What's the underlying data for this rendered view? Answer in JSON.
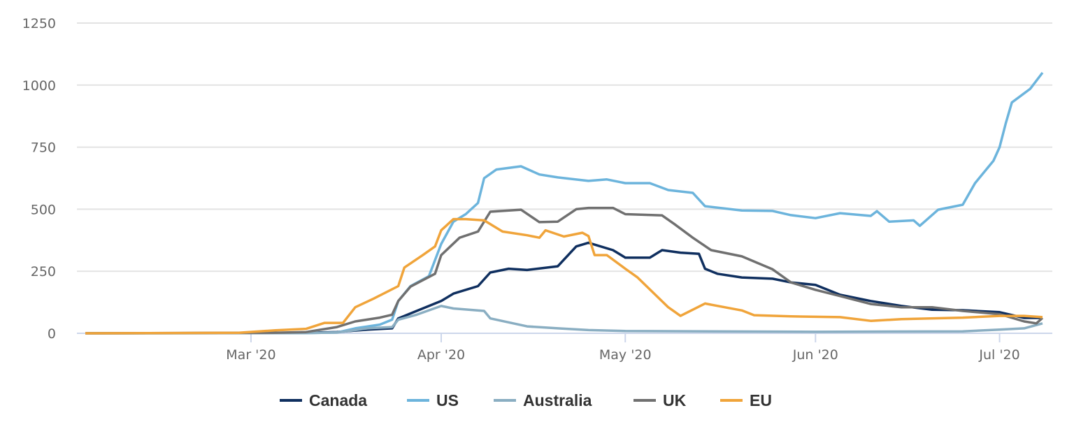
{
  "chart_data": {
    "type": "line",
    "title": "",
    "xlabel": "",
    "ylabel": "",
    "xlim": [
      "2020-02-03",
      "2020-07-08"
    ],
    "ylim": [
      0,
      1250
    ],
    "grid": true,
    "legend_position": "bottom-center",
    "y_ticks": [
      "0",
      "250",
      "500",
      "750",
      "1000",
      "1250"
    ],
    "x_ticks": [
      {
        "date": "2020-03-01",
        "label": "Mar '20"
      },
      {
        "date": "2020-04-01",
        "label": "Apr '20"
      },
      {
        "date": "2020-05-01",
        "label": "May '20"
      },
      {
        "date": "2020-06-01",
        "label": "Jun '20"
      },
      {
        "date": "2020-07-01",
        "label": "Jul '20"
      }
    ],
    "series": [
      {
        "name": "Canada",
        "color": "#0f2f5f",
        "points": [
          [
            "2020-02-03",
            0
          ],
          [
            "2020-03-10",
            2
          ],
          [
            "2020-03-15",
            5
          ],
          [
            "2020-03-20",
            15
          ],
          [
            "2020-03-24",
            20
          ],
          [
            "2020-03-25",
            60
          ],
          [
            "2020-03-28",
            90
          ],
          [
            "2020-04-01",
            130
          ],
          [
            "2020-04-03",
            160
          ],
          [
            "2020-04-07",
            190
          ],
          [
            "2020-04-09",
            245
          ],
          [
            "2020-04-12",
            260
          ],
          [
            "2020-04-15",
            255
          ],
          [
            "2020-04-20",
            270
          ],
          [
            "2020-04-23",
            350
          ],
          [
            "2020-04-25",
            365
          ],
          [
            "2020-04-29",
            335
          ],
          [
            "2020-05-01",
            305
          ],
          [
            "2020-05-05",
            305
          ],
          [
            "2020-05-07",
            335
          ],
          [
            "2020-05-10",
            325
          ],
          [
            "2020-05-13",
            320
          ],
          [
            "2020-05-14",
            260
          ],
          [
            "2020-05-16",
            240
          ],
          [
            "2020-05-20",
            225
          ],
          [
            "2020-05-25",
            220
          ],
          [
            "2020-05-28",
            205
          ],
          [
            "2020-06-01",
            195
          ],
          [
            "2020-06-05",
            155
          ],
          [
            "2020-06-10",
            130
          ],
          [
            "2020-06-15",
            110
          ],
          [
            "2020-06-20",
            95
          ],
          [
            "2020-06-25",
            93
          ],
          [
            "2020-07-01",
            85
          ],
          [
            "2020-07-05",
            62
          ],
          [
            "2020-07-08",
            62
          ]
        ]
      },
      {
        "name": "US",
        "color": "#6cb4dc",
        "points": [
          [
            "2020-02-03",
            0
          ],
          [
            "2020-03-10",
            1
          ],
          [
            "2020-03-15",
            3
          ],
          [
            "2020-03-18",
            20
          ],
          [
            "2020-03-22",
            35
          ],
          [
            "2020-03-24",
            55
          ],
          [
            "2020-03-25",
            130
          ],
          [
            "2020-03-27",
            190
          ],
          [
            "2020-03-30",
            230
          ],
          [
            "2020-04-01",
            360
          ],
          [
            "2020-04-03",
            450
          ],
          [
            "2020-04-05",
            480
          ],
          [
            "2020-04-07",
            525
          ],
          [
            "2020-04-08",
            625
          ],
          [
            "2020-04-10",
            660
          ],
          [
            "2020-04-14",
            673
          ],
          [
            "2020-04-17",
            640
          ],
          [
            "2020-04-20",
            628
          ],
          [
            "2020-04-25",
            614
          ],
          [
            "2020-04-28",
            620
          ],
          [
            "2020-05-01",
            605
          ],
          [
            "2020-05-05",
            605
          ],
          [
            "2020-05-08",
            577
          ],
          [
            "2020-05-12",
            566
          ],
          [
            "2020-05-14",
            512
          ],
          [
            "2020-05-20",
            495
          ],
          [
            "2020-05-25",
            493
          ],
          [
            "2020-05-28",
            476
          ],
          [
            "2020-06-01",
            464
          ],
          [
            "2020-06-05",
            484
          ],
          [
            "2020-06-10",
            473
          ],
          [
            "2020-06-11",
            492
          ],
          [
            "2020-06-13",
            450
          ],
          [
            "2020-06-17",
            455
          ],
          [
            "2020-06-18",
            433
          ],
          [
            "2020-06-21",
            498
          ],
          [
            "2020-06-25",
            518
          ],
          [
            "2020-06-27",
            605
          ],
          [
            "2020-06-30",
            695
          ],
          [
            "2020-07-01",
            750
          ],
          [
            "2020-07-02",
            845
          ],
          [
            "2020-07-03",
            930
          ],
          [
            "2020-07-06",
            985
          ],
          [
            "2020-07-08",
            1050
          ]
        ]
      },
      {
        "name": "Australia",
        "color": "#8aaec2",
        "points": [
          [
            "2020-02-03",
            0
          ],
          [
            "2020-03-10",
            1
          ],
          [
            "2020-03-15",
            3
          ],
          [
            "2020-03-20",
            20
          ],
          [
            "2020-03-24",
            25
          ],
          [
            "2020-03-25",
            55
          ],
          [
            "2020-03-28",
            75
          ],
          [
            "2020-04-01",
            110
          ],
          [
            "2020-04-03",
            100
          ],
          [
            "2020-04-08",
            90
          ],
          [
            "2020-04-09",
            60
          ],
          [
            "2020-04-15",
            28
          ],
          [
            "2020-04-20",
            20
          ],
          [
            "2020-04-25",
            13
          ],
          [
            "2020-05-01",
            9
          ],
          [
            "2020-05-15",
            8
          ],
          [
            "2020-06-01",
            6
          ],
          [
            "2020-06-25",
            8
          ],
          [
            "2020-07-01",
            15
          ],
          [
            "2020-07-05",
            20
          ],
          [
            "2020-07-08",
            40
          ]
        ]
      },
      {
        "name": "UK",
        "color": "#707070",
        "points": [
          [
            "2020-02-03",
            0
          ],
          [
            "2020-03-05",
            2
          ],
          [
            "2020-03-10",
            5
          ],
          [
            "2020-03-15",
            25
          ],
          [
            "2020-03-18",
            48
          ],
          [
            "2020-03-22",
            63
          ],
          [
            "2020-03-24",
            75
          ],
          [
            "2020-03-25",
            130
          ],
          [
            "2020-03-27",
            188
          ],
          [
            "2020-03-31",
            240
          ],
          [
            "2020-04-01",
            315
          ],
          [
            "2020-04-04",
            385
          ],
          [
            "2020-04-07",
            410
          ],
          [
            "2020-04-09",
            490
          ],
          [
            "2020-04-14",
            498
          ],
          [
            "2020-04-17",
            448
          ],
          [
            "2020-04-20",
            450
          ],
          [
            "2020-04-23",
            500
          ],
          [
            "2020-04-25",
            505
          ],
          [
            "2020-04-29",
            505
          ],
          [
            "2020-05-01",
            480
          ],
          [
            "2020-05-07",
            475
          ],
          [
            "2020-05-09",
            440
          ],
          [
            "2020-05-12",
            385
          ],
          [
            "2020-05-15",
            335
          ],
          [
            "2020-05-20",
            310
          ],
          [
            "2020-05-25",
            258
          ],
          [
            "2020-05-28",
            205
          ],
          [
            "2020-06-01",
            175
          ],
          [
            "2020-06-05",
            150
          ],
          [
            "2020-06-10",
            118
          ],
          [
            "2020-06-15",
            105
          ],
          [
            "2020-06-20",
            105
          ],
          [
            "2020-06-25",
            90
          ],
          [
            "2020-07-01",
            77
          ],
          [
            "2020-07-05",
            48
          ],
          [
            "2020-07-07",
            40
          ],
          [
            "2020-07-08",
            62
          ]
        ]
      },
      {
        "name": "EU",
        "color": "#f0a43a",
        "points": [
          [
            "2020-02-03",
            0
          ],
          [
            "2020-02-28",
            2
          ],
          [
            "2020-03-05",
            12
          ],
          [
            "2020-03-10",
            18
          ],
          [
            "2020-03-13",
            42
          ],
          [
            "2020-03-16",
            42
          ],
          [
            "2020-03-18",
            105
          ],
          [
            "2020-03-21",
            140
          ],
          [
            "2020-03-25",
            190
          ],
          [
            "2020-03-26",
            265
          ],
          [
            "2020-03-29",
            315
          ],
          [
            "2020-03-31",
            350
          ],
          [
            "2020-04-01",
            415
          ],
          [
            "2020-04-03",
            460
          ],
          [
            "2020-04-05",
            460
          ],
          [
            "2020-04-08",
            455
          ],
          [
            "2020-04-11",
            410
          ],
          [
            "2020-04-15",
            395
          ],
          [
            "2020-04-17",
            385
          ],
          [
            "2020-04-18",
            415
          ],
          [
            "2020-04-21",
            390
          ],
          [
            "2020-04-24",
            405
          ],
          [
            "2020-04-25",
            392
          ],
          [
            "2020-04-26",
            315
          ],
          [
            "2020-04-28",
            315
          ],
          [
            "2020-05-01",
            260
          ],
          [
            "2020-05-03",
            225
          ],
          [
            "2020-05-08",
            105
          ],
          [
            "2020-05-10",
            70
          ],
          [
            "2020-05-14",
            120
          ],
          [
            "2020-05-20",
            92
          ],
          [
            "2020-05-22",
            73
          ],
          [
            "2020-05-28",
            68
          ],
          [
            "2020-06-05",
            65
          ],
          [
            "2020-06-10",
            50
          ],
          [
            "2020-06-15",
            57
          ],
          [
            "2020-06-25",
            63
          ],
          [
            "2020-07-01",
            70
          ],
          [
            "2020-07-05",
            70
          ],
          [
            "2020-07-08",
            65
          ]
        ]
      }
    ]
  }
}
